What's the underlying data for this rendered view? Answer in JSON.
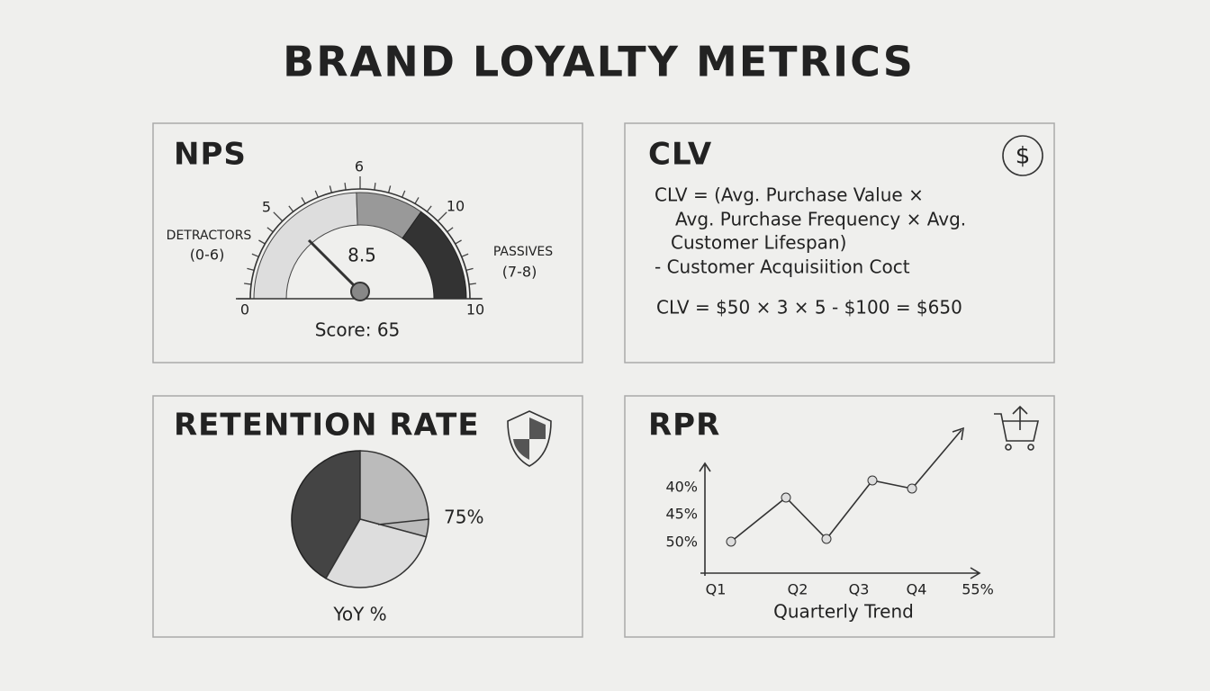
{
  "title": "BRAND LOYALTY METRICS",
  "nps": {
    "title": "NPS",
    "scale_labels": [
      "0",
      "5",
      "6",
      "10",
      "10"
    ],
    "detractors": [
      "DETRACTORS",
      "(0-6)"
    ],
    "passives": [
      "PASSIVES",
      "(7-8)"
    ],
    "needle_label": "8.5",
    "score": "Score: 65"
  },
  "clv": {
    "title": "CLV",
    "formula": [
      "CLV = (Avg. Purchase Value ×",
      "Avg. Purchase Frequency × Avg.",
      "Customer   Lifespan)",
      "- Customer Acquisiition Coct"
    ],
    "example": "CLV = $50 × 3 × 5 - $100 = $650"
  },
  "retention": {
    "title": "RETENTION RATE",
    "pie_label": "75%",
    "caption": "YoY %"
  },
  "rpr": {
    "title": "RPR",
    "y_labels": [
      "40%",
      "45%",
      "50%"
    ],
    "x_labels": [
      "Q1",
      "Q2",
      "Q3",
      "Q4",
      "55%"
    ],
    "caption": "Quarterly Trend"
  }
}
